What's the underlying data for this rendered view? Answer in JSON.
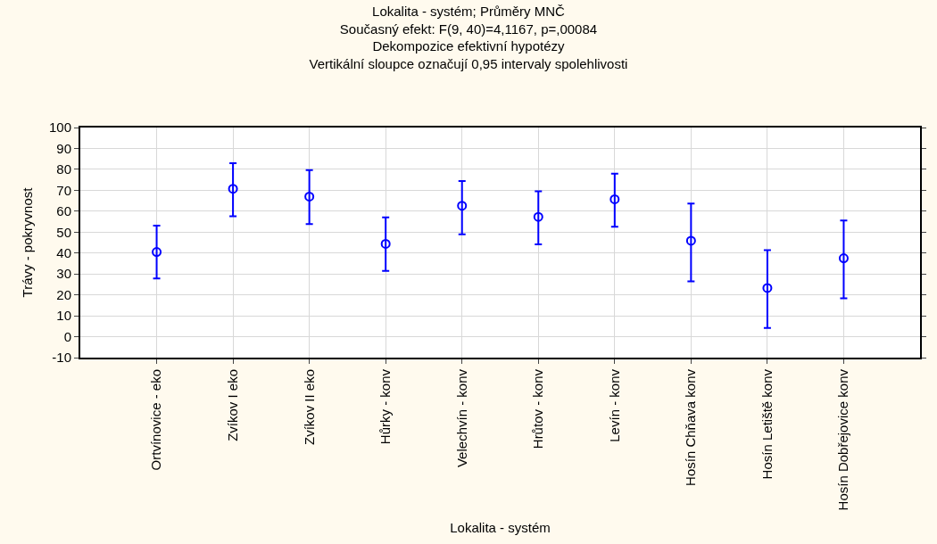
{
  "chart_data": {
    "type": "scatter",
    "title": "Lokalita - systém; Průměry MNČ",
    "subtitle": "Současný efekt: F(9, 40)=4,1167, p=,00084\nDekompozice efektivní hypotézy\nVertikální sloupce označují 0,95 intervaly spolehlivosti",
    "xlabel": "Lokalita - systém",
    "ylabel": "Trávy - pokryvnost",
    "categories": [
      "Ortvínovice - eko",
      "Zvíkov I eko",
      "Zvíkov II eko",
      "Hůrky - konv",
      "Velechvín - konv",
      "Hrůtov - konv",
      "Levín - konv",
      "Hosín Chňava konv",
      "Hosín Letiště konv",
      "Hosín Dobřejovice konv"
    ],
    "series": [
      {
        "color": "#0000ff",
        "values": [
          40.5,
          70.7,
          67.0,
          44.4,
          62.6,
          57.3,
          65.7,
          45.9,
          23.3,
          37.5
        ],
        "errors": [
          [
            27.8,
            53.1
          ],
          [
            57.6,
            82.9
          ],
          [
            53.9,
            79.6
          ],
          [
            31.5,
            57.0
          ],
          [
            48.9,
            74.4
          ],
          [
            44.2,
            69.5
          ],
          [
            52.6,
            77.9
          ],
          [
            26.5,
            63.7
          ],
          [
            4.2,
            41.4
          ],
          [
            18.4,
            55.6
          ]
        ]
      }
    ],
    "ylim": [
      -10,
      100
    ],
    "yticks": [
      -10,
      0,
      10,
      20,
      30,
      40,
      50,
      60,
      70,
      80,
      90,
      100
    ],
    "grid": true,
    "marker": "circle"
  }
}
